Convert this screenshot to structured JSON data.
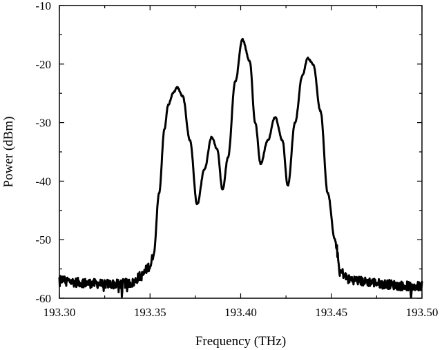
{
  "chart_data": {
    "type": "line",
    "title": "",
    "xlabel": "Frequency (THz)",
    "ylabel": "Power (dBm)",
    "xlim": [
      193.3,
      193.5
    ],
    "ylim": [
      -60,
      -10
    ],
    "xticks": [
      "193.30",
      "193.35",
      "193.40",
      "193.45",
      "193.50"
    ],
    "yticks": [
      "-10",
      "-20",
      "-30",
      "-40",
      "-50",
      "-60"
    ],
    "grid": false,
    "legend": "none",
    "line_color": "#000000",
    "series": [
      {
        "x": [
          193.3,
          193.31,
          193.32,
          193.33,
          193.34,
          193.345,
          193.35,
          193.352,
          193.355,
          193.358,
          193.36,
          193.363,
          193.365,
          193.368,
          193.372,
          193.376,
          193.38,
          193.384,
          193.387,
          193.39,
          193.393,
          193.397,
          193.401,
          193.405,
          193.408,
          193.411,
          193.415,
          193.419,
          193.423,
          193.426,
          193.43,
          193.434,
          193.437,
          193.44,
          193.444,
          193.448,
          193.452,
          193.455,
          193.46,
          193.47,
          193.48,
          193.49,
          193.5
        ],
        "y": [
          -56.8,
          -57.3,
          -57.5,
          -57.6,
          -57.4,
          -56.2,
          -54.5,
          -52.5,
          -42.0,
          -31.0,
          -27.0,
          -24.8,
          -24.0,
          -25.5,
          -33.0,
          -44.0,
          -38.0,
          -32.5,
          -34.5,
          -41.5,
          -36.0,
          -23.0,
          -15.8,
          -19.5,
          -30.0,
          -37.0,
          -33.0,
          -29.0,
          -33.0,
          -40.8,
          -30.0,
          -22.0,
          -19.0,
          -20.0,
          -28.0,
          -42.0,
          -50.0,
          -55.5,
          -56.8,
          -57.2,
          -57.6,
          -57.9,
          -58.0
        ]
      }
    ]
  }
}
